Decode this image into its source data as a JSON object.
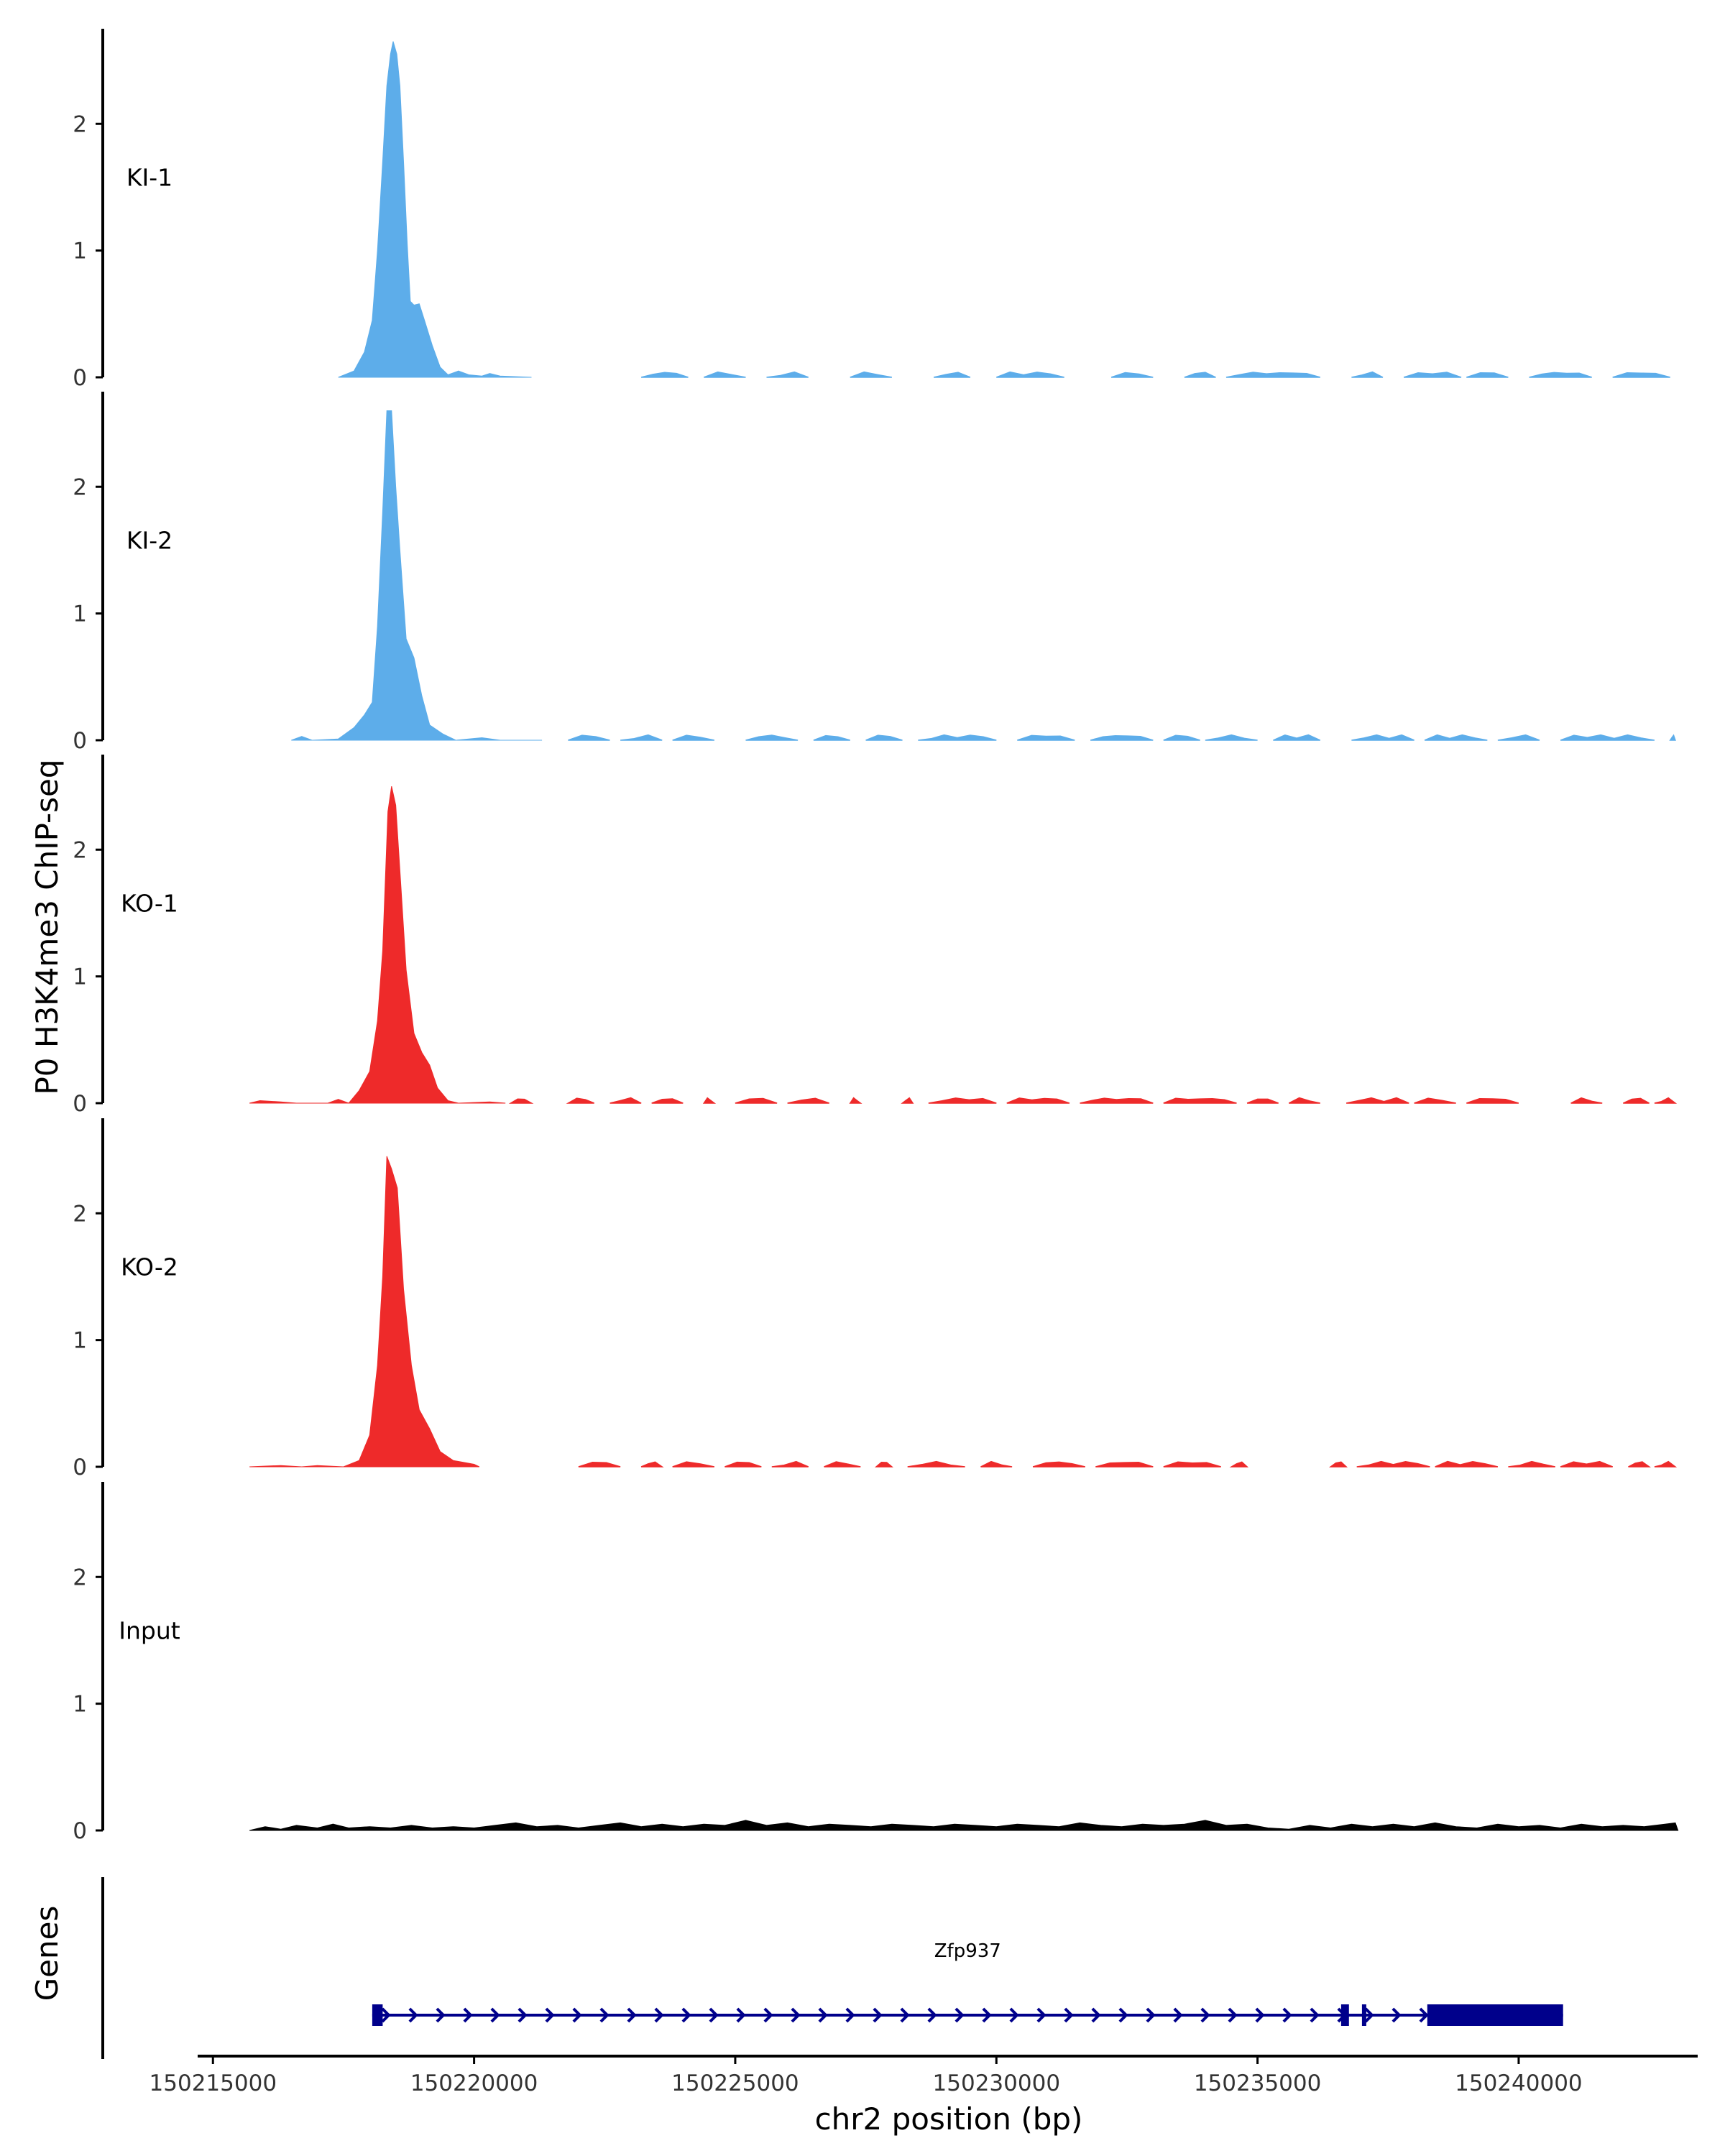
{
  "chart_data": {
    "type": "area",
    "ylabel": "P0 H3K4me3 ChIP-seq",
    "xlabel": "chr2 position (bp)",
    "xlim": [
      150213400,
      150243400
    ],
    "x_ticks": [
      150215000,
      150220000,
      150225000,
      150230000,
      150235000,
      150240000
    ],
    "x_tick_labels": [
      "150215000",
      "150220000",
      "150225000",
      "150230000",
      "150235000",
      "150240000"
    ],
    "ylim": [
      0,
      2.75
    ],
    "y_ticks": [
      0,
      1,
      2
    ],
    "y_tick_labels": [
      "0",
      "1",
      "2"
    ],
    "series": [
      {
        "name": "KI-1",
        "color": "#5DADEA",
        "points": [
          [
            150217400,
            0
          ],
          [
            150217700,
            0.05
          ],
          [
            150217900,
            0.2
          ],
          [
            150218050,
            0.45
          ],
          [
            150218150,
            1.0
          ],
          [
            150218250,
            1.7
          ],
          [
            150218330,
            2.3
          ],
          [
            150218400,
            2.55
          ],
          [
            150218450,
            2.65
          ],
          [
            150218520,
            2.55
          ],
          [
            150218580,
            2.3
          ],
          [
            150218650,
            1.7
          ],
          [
            150218720,
            1.05
          ],
          [
            150218780,
            0.6
          ],
          [
            150218850,
            0.57
          ],
          [
            150218950,
            0.58
          ],
          [
            150219050,
            0.45
          ],
          [
            150219200,
            0.25
          ],
          [
            150219350,
            0.08
          ],
          [
            150219500,
            0.02
          ],
          [
            150219700,
            0.05
          ],
          [
            150219900,
            0.02
          ],
          [
            150220150,
            0.01
          ],
          [
            150220300,
            0.03
          ],
          [
            150220500,
            0.01
          ],
          [
            150221100,
            0
          ]
        ]
      },
      {
        "name": "KI-2",
        "color": "#5DADEA",
        "points": [
          [
            150216500,
            0
          ],
          [
            150216700,
            0.03
          ],
          [
            150216900,
            0
          ],
          [
            150217400,
            0.01
          ],
          [
            150217700,
            0.1
          ],
          [
            150217900,
            0.2
          ],
          [
            150218050,
            0.3
          ],
          [
            150218150,
            0.9
          ],
          [
            150218250,
            1.8
          ],
          [
            150218330,
            2.6
          ],
          [
            150218420,
            2.6
          ],
          [
            150218500,
            2.0
          ],
          [
            150218580,
            1.5
          ],
          [
            150218700,
            0.8
          ],
          [
            150218850,
            0.65
          ],
          [
            150219000,
            0.35
          ],
          [
            150219150,
            0.12
          ],
          [
            150219400,
            0.05
          ],
          [
            150219650,
            0
          ],
          [
            150220150,
            0.02
          ],
          [
            150220500,
            0
          ],
          [
            150221300,
            0
          ]
        ]
      },
      {
        "name": "KO-1",
        "color": "#EE2A2A",
        "points": [
          [
            150215700,
            0
          ],
          [
            150215900,
            0.02
          ],
          [
            150216300,
            0.01
          ],
          [
            150216600,
            0
          ],
          [
            150217200,
            0
          ],
          [
            150217400,
            0.03
          ],
          [
            150217600,
            0
          ],
          [
            150217800,
            0.1
          ],
          [
            150218000,
            0.25
          ],
          [
            150218150,
            0.65
          ],
          [
            150218250,
            1.2
          ],
          [
            150218350,
            2.3
          ],
          [
            150218420,
            2.5
          ],
          [
            150218500,
            2.35
          ],
          [
            150218600,
            1.7
          ],
          [
            150218700,
            1.05
          ],
          [
            150218850,
            0.55
          ],
          [
            150219000,
            0.4
          ],
          [
            150219150,
            0.3
          ],
          [
            150219300,
            0.12
          ],
          [
            150219500,
            0.02
          ],
          [
            150219700,
            0
          ],
          [
            150220300,
            0.01
          ],
          [
            150220600,
            0
          ]
        ]
      },
      {
        "name": "KO-2",
        "color": "#EE2A2A",
        "points": [
          [
            150215700,
            0
          ],
          [
            150216300,
            0.01
          ],
          [
            150216700,
            0
          ],
          [
            150217000,
            0.01
          ],
          [
            150217500,
            0
          ],
          [
            150217800,
            0.05
          ],
          [
            150218000,
            0.25
          ],
          [
            150218150,
            0.8
          ],
          [
            150218250,
            1.5
          ],
          [
            150218330,
            2.45
          ],
          [
            150218420,
            2.35
          ],
          [
            150218530,
            2.2
          ],
          [
            150218650,
            1.4
          ],
          [
            150218800,
            0.8
          ],
          [
            150218950,
            0.45
          ],
          [
            150219150,
            0.3
          ],
          [
            150219350,
            0.12
          ],
          [
            150219600,
            0.05
          ],
          [
            150220000,
            0.02
          ],
          [
            150220100,
            0
          ]
        ]
      },
      {
        "name": "Input",
        "color": "#000000",
        "points": [
          [
            150215700,
            0
          ],
          [
            150216000,
            0.03
          ],
          [
            150216300,
            0.01
          ],
          [
            150216600,
            0.04
          ],
          [
            150217000,
            0.02
          ],
          [
            150217300,
            0.05
          ],
          [
            150217600,
            0.02
          ],
          [
            150218000,
            0.03
          ],
          [
            150218400,
            0.02
          ],
          [
            150218800,
            0.04
          ],
          [
            150219200,
            0.02
          ],
          [
            150219600,
            0.03
          ],
          [
            150220000,
            0.02
          ],
          [
            150220400,
            0.04
          ],
          [
            150220800,
            0.06
          ],
          [
            150221200,
            0.03
          ],
          [
            150221600,
            0.04
          ],
          [
            150222000,
            0.02
          ],
          [
            150222400,
            0.04
          ],
          [
            150222800,
            0.06
          ],
          [
            150223200,
            0.03
          ],
          [
            150223600,
            0.05
          ],
          [
            150224000,
            0.03
          ],
          [
            150224400,
            0.05
          ],
          [
            150224800,
            0.04
          ],
          [
            150225200,
            0.08
          ],
          [
            150225600,
            0.04
          ],
          [
            150226000,
            0.06
          ],
          [
            150226400,
            0.03
          ],
          [
            150226800,
            0.05
          ],
          [
            150227200,
            0.04
          ],
          [
            150227600,
            0.03
          ],
          [
            150228000,
            0.05
          ],
          [
            150228400,
            0.04
          ],
          [
            150228800,
            0.03
          ],
          [
            150229200,
            0.05
          ],
          [
            150229600,
            0.04
          ],
          [
            150230000,
            0.03
          ],
          [
            150230400,
            0.05
          ],
          [
            150230800,
            0.04
          ],
          [
            150231200,
            0.03
          ],
          [
            150231600,
            0.06
          ],
          [
            150232000,
            0.04
          ],
          [
            150232400,
            0.03
          ],
          [
            150232800,
            0.05
          ],
          [
            150233200,
            0.04
          ],
          [
            150233600,
            0.05
          ],
          [
            150234000,
            0.08
          ],
          [
            150234400,
            0.04
          ],
          [
            150234800,
            0.05
          ],
          [
            150235200,
            0.02
          ],
          [
            150235600,
            0.01
          ],
          [
            150236000,
            0.04
          ],
          [
            150236400,
            0.02
          ],
          [
            150236800,
            0.05
          ],
          [
            150237200,
            0.03
          ],
          [
            150237600,
            0.05
          ],
          [
            150238000,
            0.03
          ],
          [
            150238400,
            0.06
          ],
          [
            150238800,
            0.03
          ],
          [
            150239200,
            0.02
          ],
          [
            150239600,
            0.05
          ],
          [
            150240000,
            0.03
          ],
          [
            150240400,
            0.04
          ],
          [
            150240800,
            0.02
          ],
          [
            150241200,
            0.05
          ],
          [
            150241600,
            0.03
          ],
          [
            150242000,
            0.04
          ],
          [
            150242400,
            0.03
          ],
          [
            150242800,
            0.05
          ],
          [
            150243000,
            0.06
          ],
          [
            150243050,
            0
          ]
        ]
      }
    ],
    "noise_regions": {
      "KI-1": [
        [
          150223200,
          150224100
        ],
        [
          150224400,
          150225200
        ],
        [
          150225600,
          150226400
        ],
        [
          150227200,
          150228000
        ],
        [
          150228800,
          150229500
        ],
        [
          150230000,
          150231300
        ],
        [
          150232200,
          150233000
        ],
        [
          150233600,
          150234200
        ],
        [
          150234400,
          150236200
        ],
        [
          150236800,
          150237400
        ],
        [
          150237800,
          150238900
        ],
        [
          150239000,
          150239800
        ],
        [
          150240200,
          150241400
        ],
        [
          150241800,
          150242900
        ]
      ],
      "KI-2": [
        [
          150221800,
          150222600
        ],
        [
          150222800,
          150223600
        ],
        [
          150223800,
          150224600
        ],
        [
          150225200,
          150226200
        ],
        [
          150226500,
          150227200
        ],
        [
          150227500,
          150228200
        ],
        [
          150228500,
          150230000
        ],
        [
          150230400,
          150231500
        ],
        [
          150231800,
          150233000
        ],
        [
          150233200,
          150233900
        ],
        [
          150234000,
          150235000
        ],
        [
          150235300,
          150236200
        ],
        [
          150236800,
          150238000
        ],
        [
          150238200,
          150239400
        ],
        [
          150239600,
          150240400
        ],
        [
          150240800,
          150242600
        ],
        [
          150242900,
          150243000
        ]
      ],
      "KO-1": [
        [
          150220700,
          150221100
        ],
        [
          150221800,
          150222300
        ],
        [
          150222600,
          150223200
        ],
        [
          150223400,
          150224000
        ],
        [
          150224400,
          150224600
        ],
        [
          150225000,
          150225800
        ],
        [
          150226000,
          150226800
        ],
        [
          150227200,
          150227400
        ],
        [
          150228200,
          150228400
        ],
        [
          150228700,
          150230000
        ],
        [
          150230200,
          150231400
        ],
        [
          150231600,
          150233000
        ],
        [
          150233200,
          150234600
        ],
        [
          150234800,
          150235400
        ],
        [
          150235600,
          150236200
        ],
        [
          150236700,
          150237900
        ],
        [
          150238000,
          150238800
        ],
        [
          150239000,
          150240000
        ],
        [
          150241000,
          150241600
        ],
        [
          150242000,
          150242500
        ],
        [
          150242600,
          150243000
        ]
      ],
      "KO-2": [
        [
          150222000,
          150222800
        ],
        [
          150223200,
          150223600
        ],
        [
          150223800,
          150224600
        ],
        [
          150224800,
          150225500
        ],
        [
          150225700,
          150226400
        ],
        [
          150226700,
          150227400
        ],
        [
          150227700,
          150228000
        ],
        [
          150228300,
          150229400
        ],
        [
          150229700,
          150230300
        ],
        [
          150230700,
          150231700
        ],
        [
          150231900,
          150233000
        ],
        [
          150233200,
          150234300
        ],
        [
          150234500,
          150234800
        ],
        [
          150236400,
          150236700
        ],
        [
          150236900,
          150238300
        ],
        [
          150238400,
          150239600
        ],
        [
          150239800,
          150240700
        ],
        [
          150240800,
          150241800
        ],
        [
          150242100,
          150242500
        ],
        [
          150242600,
          150243000
        ]
      ]
    },
    "genes": [
      {
        "name": "Zfp937",
        "strand": "+",
        "color": "#00008B",
        "start": 150218050,
        "end": 150240850,
        "exons": [
          [
            150218050,
            150218250
          ],
          [
            150236600,
            150236750
          ],
          [
            150237000,
            150237050
          ],
          [
            150238250,
            150240850
          ]
        ]
      }
    ],
    "gene_track_label": "Genes"
  }
}
